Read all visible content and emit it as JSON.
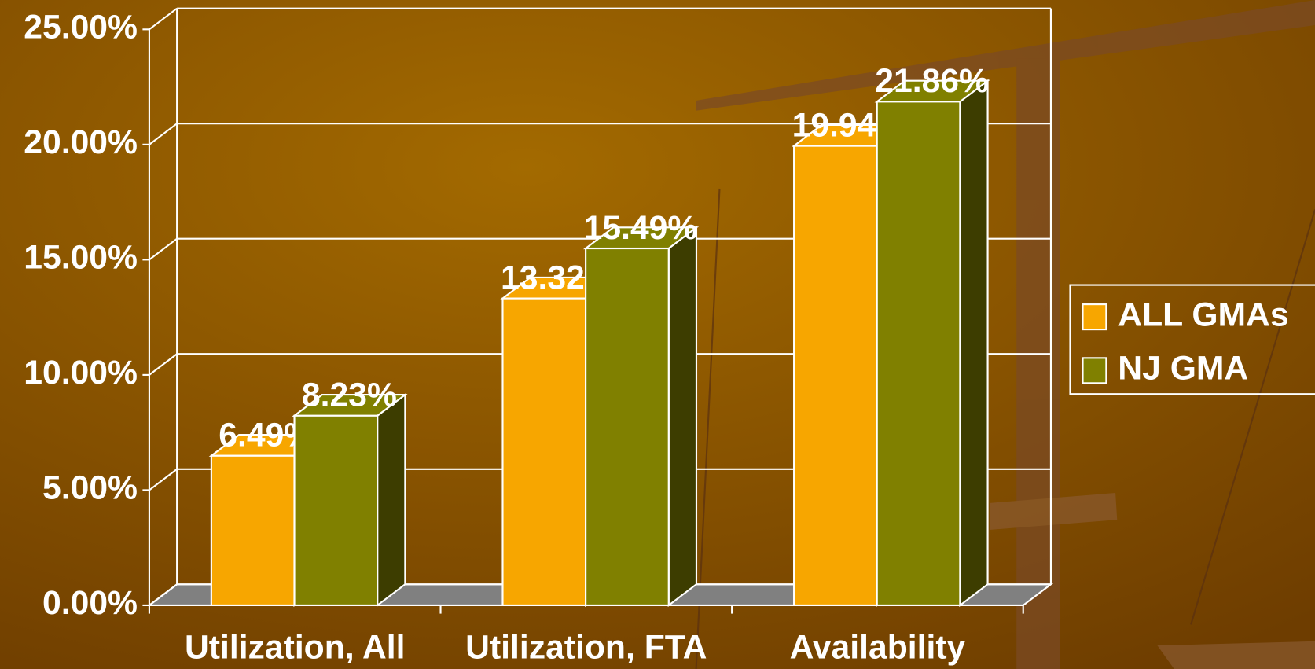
{
  "chart_data": {
    "type": "bar3d",
    "categories": [
      "Utilization, All",
      "Utilization, FTA",
      "Availability"
    ],
    "series": [
      {
        "name": "ALL GMAs",
        "color": "#f7a600",
        "values": [
          6.49,
          13.32,
          19.94
        ],
        "value_labels": [
          "6.49%",
          "13.32%",
          "19.94%"
        ]
      },
      {
        "name": "NJ GMA",
        "color": "#808000",
        "values": [
          8.23,
          15.49,
          21.86
        ],
        "value_labels": [
          "8.23%",
          "15.49%",
          "21.86%"
        ]
      }
    ],
    "ylim": [
      0,
      25
    ],
    "yticks": [
      {
        "value": 0,
        "label": "0.00%"
      },
      {
        "value": 5,
        "label": "5.00%"
      },
      {
        "value": 10,
        "label": "10.00%"
      },
      {
        "value": 15,
        "label": "15.00%"
      },
      {
        "value": 20,
        "label": "20.00%"
      },
      {
        "value": 25,
        "label": "25.00%"
      }
    ],
    "grid": true,
    "legend": "right"
  }
}
